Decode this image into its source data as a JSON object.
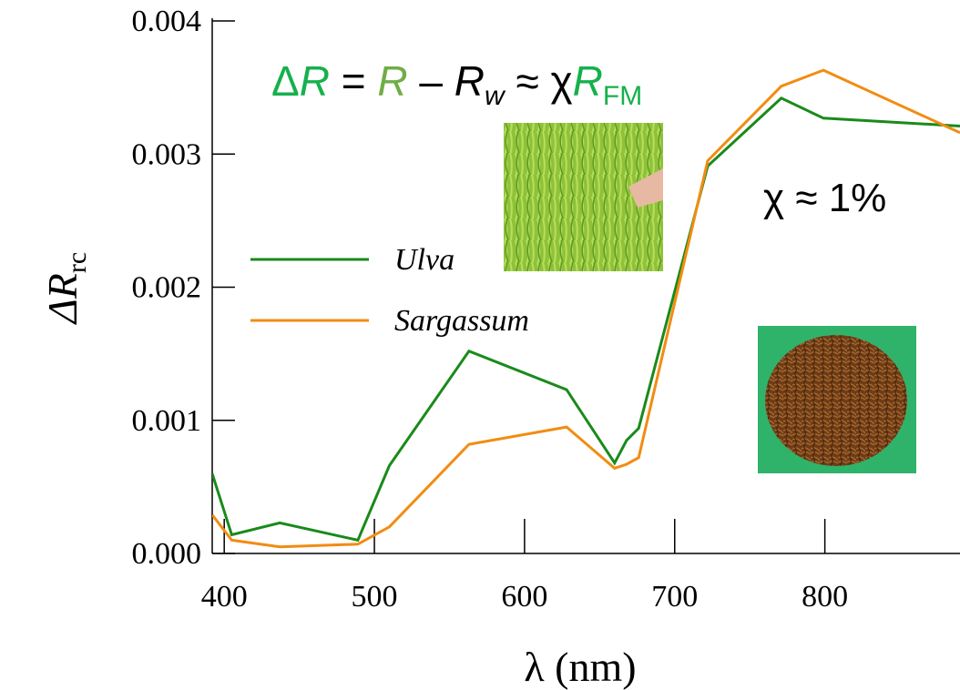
{
  "chart_data": {
    "type": "line",
    "xlabel": "λ (nm)",
    "ylabel": [
      "ΔR",
      "rc"
    ],
    "equation": [
      "Δ",
      "R",
      " = ",
      "R",
      " – ",
      "R",
      "w",
      " ≈ χ",
      "R",
      "FM"
    ],
    "annotation": "χ ≈ 1%",
    "xlim": [
      392,
      890
    ],
    "ylim": [
      0,
      0.004
    ],
    "xticks": [
      400,
      500,
      600,
      700,
      800
    ],
    "yticks": [
      {
        "value": 0,
        "label": "0.000"
      },
      0.001,
      0.002,
      0.003,
      0.004
    ],
    "x": [
      392,
      405,
      437,
      489,
      510,
      563,
      628,
      660,
      668,
      676,
      722,
      771,
      799,
      890
    ],
    "series": [
      {
        "name": "Ulva",
        "color": "#1a8a1a",
        "values": [
          0.0006,
          0.00014,
          0.00023,
          0.0001,
          0.00066,
          0.00152,
          0.00123,
          0.00068,
          0.00085,
          0.00094,
          0.00291,
          0.00342,
          0.00327,
          0.00321
        ]
      },
      {
        "name": "Sargassum",
        "color": "#f28c12",
        "values": [
          0.00029,
          0.0001,
          5e-05,
          7e-05,
          0.0002,
          0.00082,
          0.00095,
          0.00064,
          0.00067,
          0.00072,
          0.00295,
          0.00351,
          0.00363,
          0.00316
        ]
      }
    ]
  }
}
